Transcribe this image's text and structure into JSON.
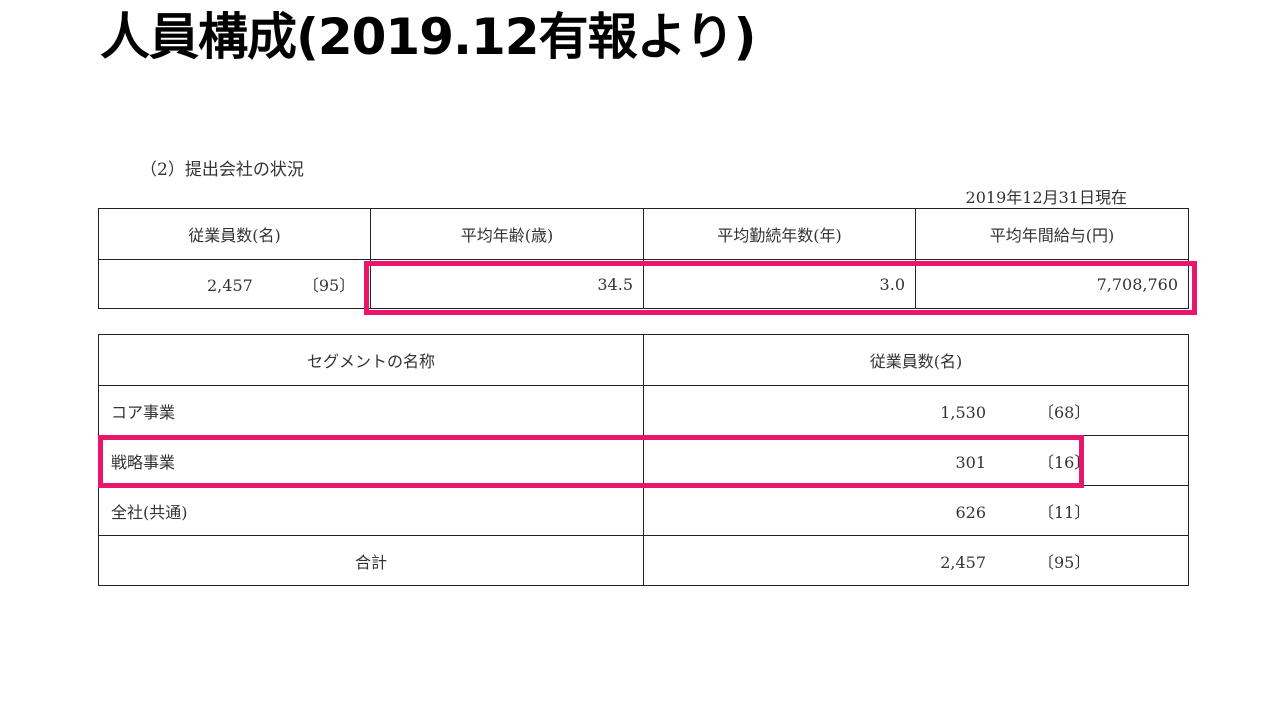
{
  "title": "人員構成(2019.12有報より)",
  "section_heading": "（2）提出会社の状況",
  "as_of": "2019年12月31日現在",
  "summary": {
    "headers": [
      "従業員数(名)",
      "平均年齢(歳)",
      "平均勤続年数(年)",
      "平均年間給与(円)"
    ],
    "employees": "2,457",
    "employees_bracket": "〔95〕",
    "avg_age": "34.5",
    "avg_tenure": "3.0",
    "avg_salary": "7,708,760"
  },
  "segments": {
    "headers": [
      "セグメントの名称",
      "従業員数(名)"
    ],
    "rows": [
      {
        "name": "コア事業",
        "count": "1,530",
        "bracket": "〔68〕"
      },
      {
        "name": "戦略事業",
        "count": "301",
        "bracket": "〔16〕"
      },
      {
        "name": "全社(共通)",
        "count": "626",
        "bracket": "〔11〕"
      }
    ],
    "total": {
      "name": "合計",
      "count": "2,457",
      "bracket": "〔95〕"
    }
  },
  "highlight_color": "#e8176b"
}
